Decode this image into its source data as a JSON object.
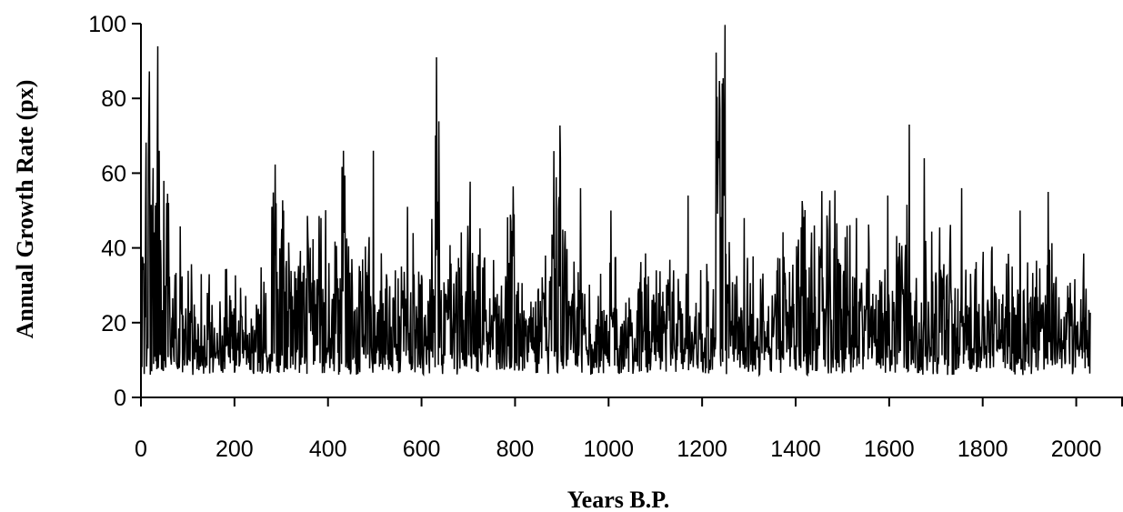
{
  "chart_data": {
    "type": "line",
    "title": "",
    "xlabel": "Years B.P.",
    "ylabel": "Annual Growth Rate (px)",
    "xlim": [
      0,
      2100
    ],
    "ylim": [
      0,
      100
    ],
    "x_ticks": [
      0,
      200,
      400,
      600,
      800,
      1000,
      1200,
      1400,
      1600,
      1800,
      2000
    ],
    "y_ticks": [
      0,
      20,
      40,
      60,
      80,
      100
    ],
    "x_tick_labels": [
      "0",
      "200",
      "400",
      "600",
      "800",
      "1000",
      "1200",
      "1400",
      "1600",
      "1800",
      "2000"
    ],
    "y_tick_labels": [
      "0",
      "20",
      "40",
      "60",
      "80",
      "100"
    ],
    "grid": false,
    "legend": "none",
    "line_color": "#000000",
    "series": [
      {
        "x_start": 0,
        "x_step": 10,
        "values": [
          28,
          45,
          40,
          55,
          35,
          30,
          25,
          20,
          24,
          18,
          22,
          16,
          17,
          15,
          18,
          15,
          14,
          15,
          18,
          20,
          17,
          16,
          16,
          18,
          17,
          19,
          17,
          24,
          32,
          30,
          35,
          30,
          26,
          27,
          28,
          26,
          25,
          24,
          28,
          27,
          20,
          22,
          25,
          40,
          33,
          28,
          20,
          22,
          32,
          20,
          19,
          22,
          24,
          20,
          22,
          23,
          22,
          23,
          24,
          28,
          26,
          24,
          26,
          50,
          30,
          24,
          26,
          26,
          25,
          28,
          30,
          28,
          24,
          20,
          16,
          20,
          22,
          26,
          30,
          34,
          22,
          18,
          18,
          17,
          16,
          18,
          22,
          26,
          35,
          40,
          34,
          21,
          20,
          21,
          18,
          17,
          16,
          18,
          18,
          19,
          20,
          22,
          18,
          22,
          18,
          20,
          23,
          24,
          20,
          16,
          18,
          22,
          28,
          21,
          18,
          18,
          18,
          18,
          18,
          19,
          17,
          24,
          22,
          65,
          60,
          24,
          18,
          20,
          20,
          23,
          24,
          18,
          17,
          18,
          18,
          21,
          20,
          25,
          25,
          24,
          30,
          28,
          30,
          26,
          28,
          30,
          26,
          28,
          30,
          28,
          27,
          25,
          24,
          23,
          24,
          25,
          20,
          20,
          20,
          18,
          22,
          30,
          34,
          36,
          22,
          18,
          18,
          22,
          22,
          24,
          26,
          30,
          25,
          24,
          22,
          16,
          18,
          20,
          26,
          20,
          21,
          20,
          22,
          20,
          22,
          20,
          20,
          22,
          23,
          20,
          22,
          25,
          26,
          24,
          22,
          20,
          22,
          18,
          20,
          19,
          18,
          20,
          18
        ]
      }
    ],
    "spikes": [
      {
        "x": 35,
        "y": 67
      },
      {
        "x": 55,
        "y": 52
      },
      {
        "x": 280,
        "y": 51
      },
      {
        "x": 305,
        "y": 50
      },
      {
        "x": 385,
        "y": 48
      },
      {
        "x": 433,
        "y": 66
      },
      {
        "x": 497,
        "y": 66
      },
      {
        "x": 570,
        "y": 51
      },
      {
        "x": 632,
        "y": 91
      },
      {
        "x": 798,
        "y": 49
      },
      {
        "x": 897,
        "y": 64
      },
      {
        "x": 940,
        "y": 56
      },
      {
        "x": 1005,
        "y": 50
      },
      {
        "x": 1170,
        "y": 54
      },
      {
        "x": 1238,
        "y": 77
      },
      {
        "x": 1243,
        "y": 84
      },
      {
        "x": 1290,
        "y": 48
      },
      {
        "x": 1415,
        "y": 50
      },
      {
        "x": 1530,
        "y": 48
      },
      {
        "x": 1597,
        "y": 54
      },
      {
        "x": 1643,
        "y": 73
      },
      {
        "x": 1675,
        "y": 64
      },
      {
        "x": 1755,
        "y": 56
      },
      {
        "x": 1880,
        "y": 50
      },
      {
        "x": 1940,
        "y": 55
      }
    ]
  }
}
